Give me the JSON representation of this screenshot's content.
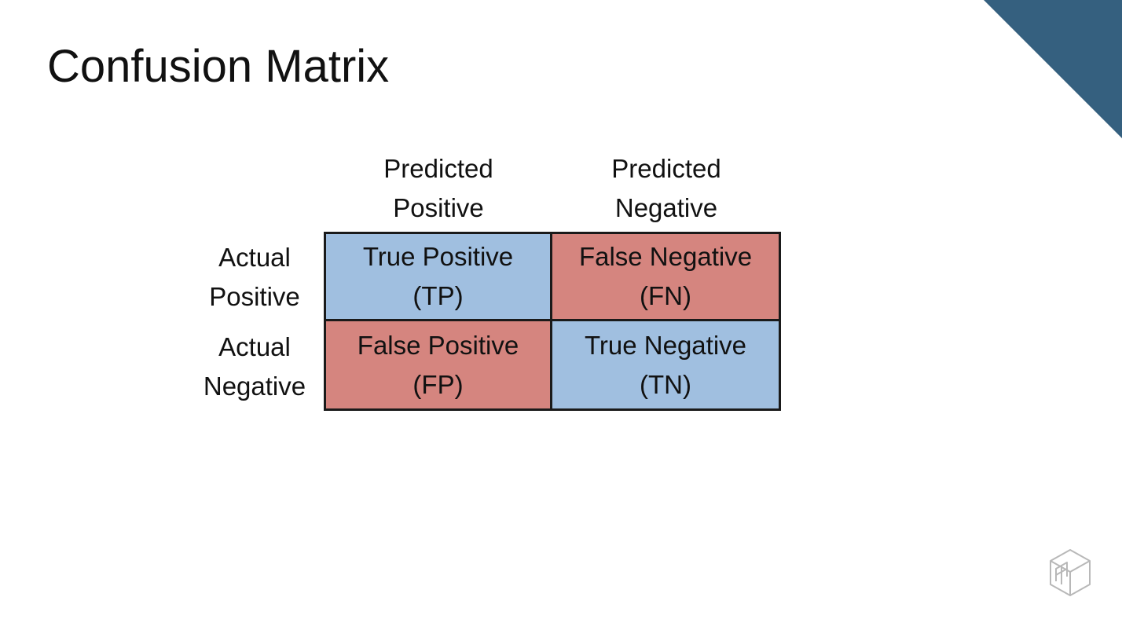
{
  "title": "Confusion Matrix",
  "colors": {
    "accent_corner": "#35607f",
    "positive_cell": "#a0bfe0",
    "negative_cell": "#d5857f",
    "grid_line": "#1a1a1a",
    "logo_stroke": "#b8b8b8"
  },
  "columns": [
    {
      "line1": "Predicted",
      "line2": "Positive"
    },
    {
      "line1": "Predicted",
      "line2": "Negative"
    }
  ],
  "rows": [
    {
      "line1": "Actual",
      "line2": "Positive"
    },
    {
      "line1": "Actual",
      "line2": "Negative"
    }
  ],
  "cells": [
    {
      "label": "True Positive",
      "abbr": "(TP)",
      "kind": "positive"
    },
    {
      "label": "False Negative",
      "abbr": "(FN)",
      "kind": "negative"
    },
    {
      "label": "False Positive",
      "abbr": "(FP)",
      "kind": "negative"
    },
    {
      "label": "True Negative",
      "abbr": "(TN)",
      "kind": "positive"
    }
  ],
  "icons": {
    "corner": "corner-triangle-icon",
    "logo": "cube-logo-icon"
  }
}
